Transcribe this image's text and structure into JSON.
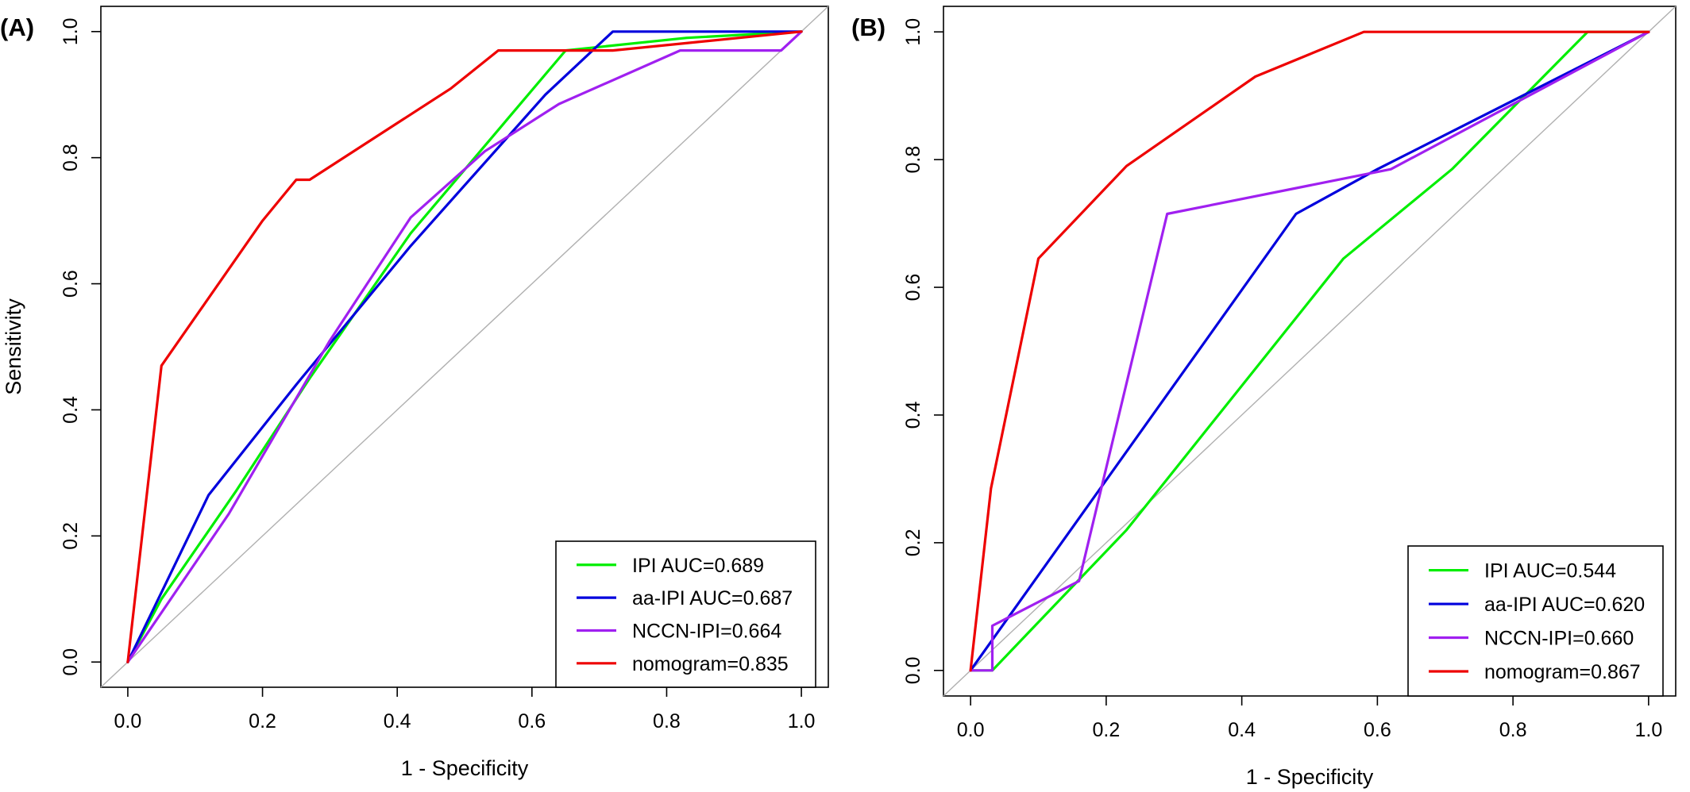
{
  "chart_data": [
    {
      "type": "line",
      "panel_label": "(A)",
      "xlabel": "1 - Specificity",
      "ylabel": "Sensitivity",
      "xlim": [
        -0.04,
        1.04
      ],
      "ylim": [
        -0.04,
        1.04
      ],
      "xticks": [
        "0.0",
        "0.2",
        "0.4",
        "0.6",
        "0.8",
        "1.0"
      ],
      "yticks": [
        "0.0",
        "0.2",
        "0.4",
        "0.6",
        "0.8",
        "1.0"
      ],
      "diagonal": true,
      "legend_position": "bottom-right",
      "series": [
        {
          "name": "IPI AUC=0.689",
          "color": "#00ee00",
          "points": [
            [
              0,
              0
            ],
            [
              0.05,
              0.1
            ],
            [
              0.16,
              0.27
            ],
            [
              0.27,
              0.45
            ],
            [
              0.42,
              0.68
            ],
            [
              0.65,
              0.97
            ],
            [
              0.83,
              0.99
            ],
            [
              1,
              1
            ]
          ]
        },
        {
          "name": "aa-IPI AUC=0.687",
          "color": "#0000dd",
          "points": [
            [
              0,
              0
            ],
            [
              0.12,
              0.265
            ],
            [
              0.25,
              0.44
            ],
            [
              0.42,
              0.66
            ],
            [
              0.62,
              0.9
            ],
            [
              0.72,
              1
            ],
            [
              1,
              1
            ]
          ]
        },
        {
          "name": "NCCN-IPI=0.664",
          "color": "#a020f0",
          "points": [
            [
              0,
              0
            ],
            [
              0.15,
              0.235
            ],
            [
              0.3,
              0.51
            ],
            [
              0.42,
              0.705
            ],
            [
              0.53,
              0.81
            ],
            [
              0.64,
              0.885
            ],
            [
              0.82,
              0.97
            ],
            [
              0.97,
              0.97
            ],
            [
              1,
              1
            ]
          ]
        },
        {
          "name": "nomogram=0.835",
          "color": "#ee0000",
          "points": [
            [
              0,
              0
            ],
            [
              0.05,
              0.47
            ],
            [
              0.2,
              0.7
            ],
            [
              0.25,
              0.765
            ],
            [
              0.27,
              0.765
            ],
            [
              0.48,
              0.91
            ],
            [
              0.55,
              0.97
            ],
            [
              0.72,
              0.97
            ],
            [
              1,
              1
            ]
          ]
        }
      ]
    },
    {
      "type": "line",
      "panel_label": "(B)",
      "xlabel": "1 - Specificity",
      "ylabel": "",
      "xlim": [
        -0.04,
        1.04
      ],
      "ylim": [
        -0.04,
        1.04
      ],
      "xticks": [
        "0.0",
        "0.2",
        "0.4",
        "0.6",
        "0.8",
        "1.0"
      ],
      "yticks": [
        "0.0",
        "0.2",
        "0.4",
        "0.6",
        "0.8",
        "1.0"
      ],
      "diagonal": true,
      "legend_position": "bottom-right",
      "series": [
        {
          "name": "IPI AUC=0.544",
          "color": "#00ee00",
          "points": [
            [
              0,
              0
            ],
            [
              0.032,
              0
            ],
            [
              0.23,
              0.22
            ],
            [
              0.55,
              0.645
            ],
            [
              0.71,
              0.785
            ],
            [
              0.91,
              1
            ],
            [
              1,
              1
            ]
          ]
        },
        {
          "name": "aa-IPI AUC=0.620",
          "color": "#0000dd",
          "points": [
            [
              0,
              0
            ],
            [
              0.48,
              0.715
            ],
            [
              0.6,
              0.785
            ],
            [
              1,
              1
            ]
          ]
        },
        {
          "name": "NCCN-IPI=0.660",
          "color": "#a020f0",
          "points": [
            [
              0,
              0
            ],
            [
              0.032,
              0
            ],
            [
              0.032,
              0.07
            ],
            [
              0.16,
              0.14
            ],
            [
              0.29,
              0.715
            ],
            [
              0.62,
              0.785
            ],
            [
              1,
              1
            ]
          ]
        },
        {
          "name": "nomogram=0.867",
          "color": "#ee0000",
          "points": [
            [
              0,
              0
            ],
            [
              0.03,
              0.285
            ],
            [
              0.1,
              0.645
            ],
            [
              0.23,
              0.79
            ],
            [
              0.42,
              0.93
            ],
            [
              0.58,
              1
            ],
            [
              1,
              1
            ]
          ]
        }
      ]
    }
  ]
}
